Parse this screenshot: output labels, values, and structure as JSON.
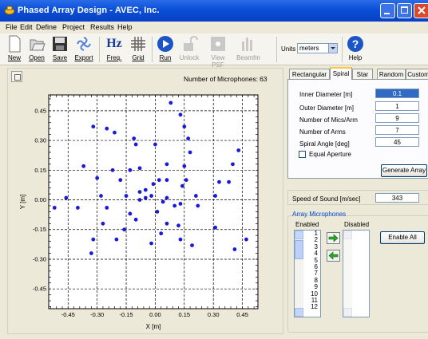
{
  "window": {
    "title": "Phased Array Design - AVEC, Inc."
  },
  "menu": [
    "File",
    "Edit",
    "Define",
    "Project",
    "Results",
    "Help"
  ],
  "toolbar": {
    "buttons": [
      {
        "label": "New",
        "icon": "new-document-icon",
        "enabled": true
      },
      {
        "label": "Open",
        "icon": "open-folder-icon",
        "enabled": true
      },
      {
        "label": "Save",
        "icon": "save-disk-icon",
        "enabled": true
      },
      {
        "label": "Export",
        "icon": "export-icon",
        "enabled": true
      },
      {
        "label": "Freq.",
        "icon": "frequency-hz-icon",
        "icon_text": "Hz",
        "enabled": true
      },
      {
        "label": "Grid",
        "icon": "grid-icon",
        "enabled": true
      },
      {
        "label": "Run",
        "icon": "run-play-icon",
        "enabled": true
      },
      {
        "label": "Unlock",
        "icon": "unlock-icon",
        "enabled": false
      },
      {
        "label": "View PSF",
        "icon": "view-psf-icon",
        "enabled": false
      },
      {
        "label": "Beamfm",
        "icon": "beamform-icon",
        "enabled": false
      },
      {
        "label": "Help",
        "icon": "help-icon",
        "enabled": true
      }
    ],
    "units_label": "Units",
    "units_value": "meters"
  },
  "plot": {
    "mic_count_label": "Number of Microphones:",
    "mic_count": "63",
    "xlabel": "X [m]",
    "ylabel": "Y [m]",
    "x_ticks": [
      "-0.45",
      "-0.30",
      "-0.15",
      "0.00",
      "0.15",
      "0.30",
      "0.45"
    ],
    "y_ticks": [
      "0.45",
      "0.30",
      "0.15",
      "0.00",
      "-0.15",
      "-0.30",
      "-0.45"
    ]
  },
  "chart_data": {
    "type": "scatter",
    "title": "",
    "xlabel": "X [m]",
    "ylabel": "Y [m]",
    "xlim": [
      -0.55,
      0.53
    ],
    "ylim": [
      -0.55,
      0.53
    ],
    "grid": true,
    "points": [
      [
        0.08,
        0.49
      ],
      [
        0.13,
        0.43
      ],
      [
        0.15,
        0.37
      ],
      [
        -0.32,
        0.37
      ],
      [
        -0.25,
        0.36
      ],
      [
        -0.21,
        0.34
      ],
      [
        -0.11,
        0.31
      ],
      [
        0.17,
        0.31
      ],
      [
        -0.1,
        0.28
      ],
      [
        0.0,
        0.28
      ],
      [
        0.18,
        0.24
      ],
      [
        0.43,
        0.25
      ],
      [
        0.06,
        0.18
      ],
      [
        -0.37,
        0.17
      ],
      [
        -0.22,
        0.15
      ],
      [
        -0.13,
        0.15
      ],
      [
        -0.08,
        0.16
      ],
      [
        0.15,
        0.17
      ],
      [
        0.4,
        0.18
      ],
      [
        -0.3,
        0.11
      ],
      [
        -0.18,
        0.1
      ],
      [
        0.02,
        0.1
      ],
      [
        0.06,
        0.1
      ],
      [
        0.16,
        0.1
      ],
      [
        0.33,
        0.09
      ],
      [
        -0.01,
        0.08
      ],
      [
        0.14,
        0.07
      ],
      [
        0.38,
        0.09
      ],
      [
        -0.05,
        0.05
      ],
      [
        -0.08,
        0.04
      ],
      [
        -0.02,
        0.02
      ],
      [
        -0.46,
        0.01
      ],
      [
        -0.28,
        0.02
      ],
      [
        -0.15,
        0.02
      ],
      [
        -0.05,
        0.01
      ],
      [
        0.06,
        0.01
      ],
      [
        0.13,
        -0.02
      ],
      [
        0.21,
        0.02
      ],
      [
        0.31,
        0.02
      ],
      [
        -0.08,
        0.0
      ],
      [
        0.04,
        -0.01
      ],
      [
        -0.52,
        -0.04
      ],
      [
        -0.4,
        -0.04
      ],
      [
        -0.25,
        -0.04
      ],
      [
        0.1,
        -0.03
      ],
      [
        0.22,
        -0.03
      ],
      [
        -0.13,
        -0.07
      ],
      [
        0.01,
        -0.06
      ],
      [
        -0.1,
        -0.1
      ],
      [
        0.06,
        -0.12
      ],
      [
        0.12,
        -0.13
      ],
      [
        0.31,
        -0.14
      ],
      [
        -0.27,
        -0.12
      ],
      [
        -0.16,
        -0.15
      ],
      [
        0.03,
        -0.17
      ],
      [
        0.13,
        -0.2
      ],
      [
        -0.32,
        -0.2
      ],
      [
        -0.2,
        -0.2
      ],
      [
        -0.02,
        -0.22
      ],
      [
        0.47,
        -0.2
      ],
      [
        0.19,
        -0.23
      ],
      [
        -0.33,
        -0.27
      ],
      [
        0.41,
        -0.25
      ]
    ]
  },
  "tabs": [
    "Rectangular",
    "Spiral",
    "Star",
    "Random",
    "Custom"
  ],
  "spiral_form": {
    "fields": [
      {
        "label": "Inner Diameter [m]",
        "value": "0.1"
      },
      {
        "label": "Outer Diameter [m]",
        "value": "1"
      },
      {
        "label": "Number of Mics/Arm",
        "value": "9"
      },
      {
        "label": "Number of Arms",
        "value": "7"
      },
      {
        "label": "Spiral Angle [deg]",
        "value": "45"
      }
    ],
    "equal_aperture_label": "Equal Aperture",
    "generate_button": "Generate Array"
  },
  "speed": {
    "label": "Speed of Sound [m/sec]",
    "value": "343"
  },
  "array_mics": {
    "group_title": "Array Microphones",
    "enabled_label": "Enabled",
    "disabled_label": "Disabled",
    "enabled_items": [
      "1",
      "2",
      "3",
      "4",
      "5",
      "6",
      "7",
      "8",
      "9",
      "10",
      "11",
      "12"
    ],
    "enable_all_button": "Enable All"
  },
  "colors": {
    "point": "#1a1ad8",
    "title_bar": "#0a4fd8",
    "tab_highlight": "#ffc83c"
  }
}
